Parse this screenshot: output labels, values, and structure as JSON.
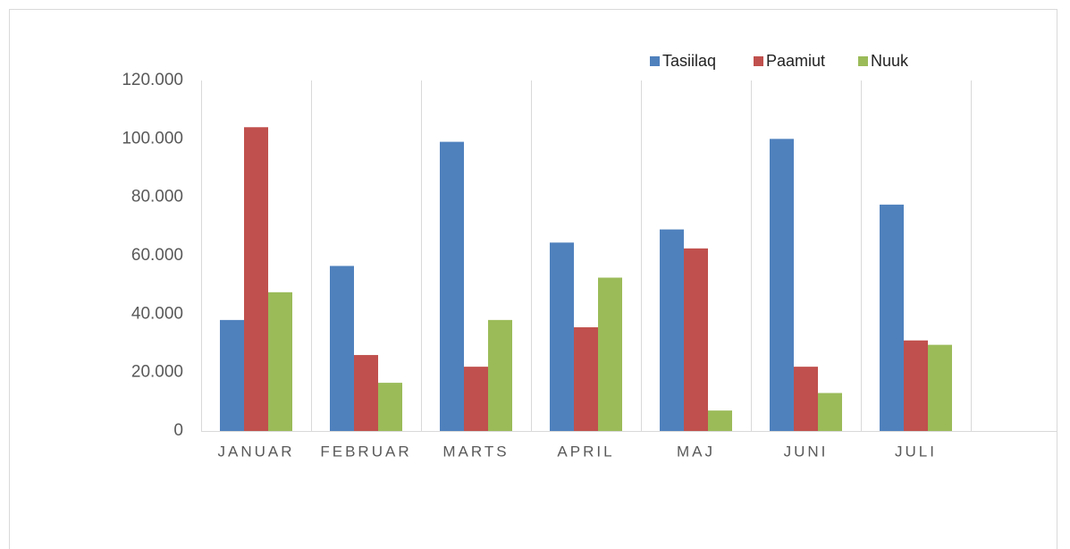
{
  "chart_data": {
    "type": "bar",
    "categories": [
      "JANUAR",
      "FEBRUAR",
      "MARTS",
      "APRIL",
      "MAJ",
      "JUNI",
      "JULI"
    ],
    "series": [
      {
        "name": "Tasiilaq",
        "color": "#4f81bd",
        "values": [
          38000,
          56500,
          99000,
          64500,
          69000,
          100000,
          77500
        ]
      },
      {
        "name": "Paamiut",
        "color": "#c0504d",
        "values": [
          104000,
          26000,
          22000,
          35500,
          62500,
          22000,
          31000
        ]
      },
      {
        "name": "Nuuk",
        "color": "#9bbb59",
        "values": [
          47500,
          16500,
          38000,
          52500,
          7000,
          13000,
          29500
        ]
      }
    ],
    "ylim": [
      0,
      120000
    ],
    "yticks": [
      0,
      {
        "value": 20000,
        "label": "20.000"
      },
      {
        "value": 40000,
        "label": "40.000"
      },
      {
        "value": 60000,
        "label": "60.000"
      },
      {
        "value": 80000,
        "label": "80.000"
      },
      {
        "value": 100000,
        "label": "100.000"
      },
      {
        "value": 120000,
        "label": "120.000"
      }
    ],
    "grid": true,
    "legend": "top-right"
  }
}
